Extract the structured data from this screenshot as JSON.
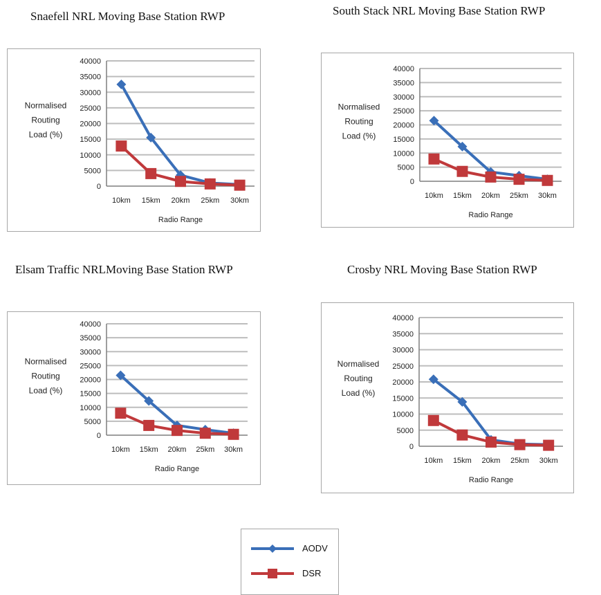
{
  "colors": {
    "aodv": "#3a6fb8",
    "dsr": "#c0393b",
    "grid": "#bdbdbd",
    "axis": "#7f7f7f"
  },
  "legend": {
    "items": [
      {
        "label": "AODV",
        "marker": "diamond",
        "color": "#3a6fb8"
      },
      {
        "label": "DSR",
        "marker": "square",
        "color": "#c0393b"
      }
    ]
  },
  "chart_data": [
    {
      "type": "line",
      "title": "Snaefell NRL Moving Base Station RWP",
      "categories": [
        "10km",
        "15km",
        "20km",
        "25km",
        "30km"
      ],
      "xlabel": "Radio Range",
      "ylabel": [
        "Normalised",
        "Routing",
        "Load (%)"
      ],
      "ylim": [
        0,
        40000
      ],
      "yticks": [
        0,
        5000,
        10000,
        15000,
        20000,
        25000,
        30000,
        35000,
        40000
      ],
      "grid": true,
      "series": [
        {
          "name": "AODV",
          "values": [
            32500,
            15500,
            3500,
            1000,
            500
          ]
        },
        {
          "name": "DSR",
          "values": [
            12800,
            4000,
            1500,
            700,
            300
          ]
        }
      ]
    },
    {
      "type": "line",
      "title": "South Stack NRL Moving Base Station RWP",
      "categories": [
        "10km",
        "15km",
        "20km",
        "25km",
        "30km"
      ],
      "xlabel": "Radio Range",
      "ylabel": [
        "Normalised",
        "Routing",
        "Load (%)"
      ],
      "ylim": [
        0,
        40000
      ],
      "yticks": [
        0,
        5000,
        10000,
        15000,
        20000,
        25000,
        30000,
        35000,
        40000
      ],
      "grid": true,
      "series": [
        {
          "name": "AODV",
          "values": [
            21500,
            12300,
            3300,
            2000,
            700
          ]
        },
        {
          "name": "DSR",
          "values": [
            7900,
            3500,
            1500,
            700,
            300
          ]
        }
      ]
    },
    {
      "type": "line",
      "title": "Elsam Traffic NRLMoving Base Station RWP",
      "categories": [
        "10km",
        "15km",
        "20km",
        "25km",
        "30km"
      ],
      "xlabel": "Radio Range",
      "ylabel": [
        "Normalised",
        "Routing",
        "Load (%)"
      ],
      "ylim": [
        0,
        40000
      ],
      "yticks": [
        0,
        5000,
        10000,
        15000,
        20000,
        25000,
        30000,
        35000,
        40000
      ],
      "grid": true,
      "series": [
        {
          "name": "AODV",
          "values": [
            21500,
            12300,
            3500,
            2000,
            700
          ]
        },
        {
          "name": "DSR",
          "values": [
            7900,
            3500,
            1700,
            700,
            300
          ]
        }
      ]
    },
    {
      "type": "line",
      "title": "Crosby NRL Moving Base Station RWP",
      "categories": [
        "10km",
        "15km",
        "20km",
        "25km",
        "30km"
      ],
      "xlabel": "Radio Range",
      "ylabel": [
        "Normalised",
        "Routing",
        "Load (%)"
      ],
      "ylim": [
        0,
        40000
      ],
      "yticks": [
        0,
        5000,
        10000,
        15000,
        20000,
        25000,
        30000,
        35000,
        40000
      ],
      "grid": true,
      "series": [
        {
          "name": "AODV",
          "values": [
            20800,
            13800,
            2000,
            700,
            500
          ]
        },
        {
          "name": "DSR",
          "values": [
            8000,
            3500,
            1300,
            500,
            300
          ]
        }
      ]
    }
  ]
}
